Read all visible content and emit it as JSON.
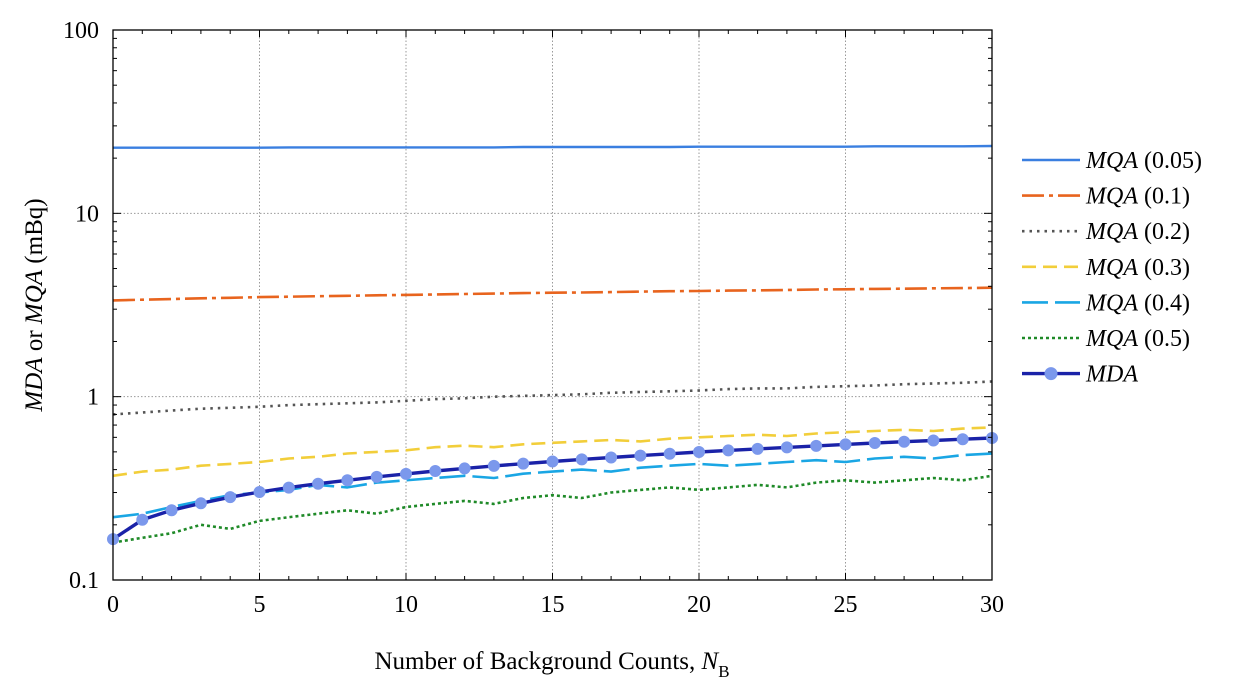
{
  "chart_data": {
    "type": "line",
    "title": "",
    "xlabel": {
      "main": "Number of Background Counts, ",
      "var": "N",
      "sub": "B"
    },
    "ylabel": {
      "p1": "MDA",
      "p2": " or ",
      "p3": "MQA",
      "p4": " (mBq)"
    },
    "xlim": [
      0,
      30
    ],
    "ylim": [
      0.1,
      100
    ],
    "yscale": "log",
    "grid": true,
    "legend_position": "right",
    "x_ticks": [
      0,
      5,
      10,
      15,
      20,
      25,
      30
    ],
    "x_tick_labels": [
      "0",
      "5",
      "10",
      "15",
      "20",
      "25",
      "30"
    ],
    "y_ticks": [
      0.1,
      1,
      10,
      100
    ],
    "y_tick_labels": [
      "0.1",
      "1",
      "10",
      "100"
    ],
    "x": [
      0,
      1,
      2,
      3,
      4,
      5,
      6,
      7,
      8,
      9,
      10,
      11,
      12,
      13,
      14,
      15,
      16,
      17,
      18,
      19,
      20,
      21,
      22,
      23,
      24,
      25,
      26,
      27,
      28,
      29,
      30
    ],
    "series": [
      {
        "name": "MQA",
        "param": "(0.05)",
        "color": "#3a7fe0",
        "dash": "solid",
        "values": [
          22.8,
          22.8,
          22.8,
          22.8,
          22.8,
          22.8,
          22.9,
          22.9,
          22.9,
          22.9,
          22.9,
          22.9,
          22.9,
          22.9,
          23.0,
          23.0,
          23.0,
          23.0,
          23.0,
          23.0,
          23.1,
          23.1,
          23.1,
          23.1,
          23.1,
          23.1,
          23.2,
          23.2,
          23.2,
          23.2,
          23.3
        ]
      },
      {
        "name": "MQA",
        "param": "(0.1)",
        "color": "#e8641e",
        "dash": "dashdot",
        "values": [
          3.35,
          3.38,
          3.41,
          3.44,
          3.46,
          3.49,
          3.51,
          3.53,
          3.55,
          3.57,
          3.59,
          3.61,
          3.63,
          3.65,
          3.67,
          3.69,
          3.7,
          3.72,
          3.74,
          3.76,
          3.77,
          3.79,
          3.8,
          3.82,
          3.84,
          3.85,
          3.87,
          3.88,
          3.9,
          3.91,
          3.93
        ]
      },
      {
        "name": "MQA",
        "param": "(0.2)",
        "color": "#555555",
        "dash": "dotted",
        "values": [
          0.8,
          0.82,
          0.84,
          0.86,
          0.87,
          0.88,
          0.9,
          0.91,
          0.92,
          0.93,
          0.95,
          0.97,
          0.98,
          1.0,
          1.01,
          1.02,
          1.03,
          1.05,
          1.06,
          1.07,
          1.08,
          1.1,
          1.11,
          1.11,
          1.13,
          1.14,
          1.15,
          1.17,
          1.18,
          1.19,
          1.21
        ]
      },
      {
        "name": "MQA",
        "param": "(0.3)",
        "color": "#f2ce3a",
        "dash": "dashed",
        "values": [
          0.37,
          0.39,
          0.4,
          0.42,
          0.43,
          0.44,
          0.46,
          0.47,
          0.49,
          0.5,
          0.51,
          0.53,
          0.54,
          0.53,
          0.55,
          0.56,
          0.57,
          0.58,
          0.57,
          0.59,
          0.6,
          0.61,
          0.62,
          0.61,
          0.63,
          0.64,
          0.65,
          0.66,
          0.65,
          0.67,
          0.68
        ]
      },
      {
        "name": "MQA",
        "param": "(0.4)",
        "color": "#1aa6e4",
        "dash": "longdash",
        "values": [
          0.22,
          0.23,
          0.25,
          0.27,
          0.29,
          0.3,
          0.31,
          0.33,
          0.32,
          0.34,
          0.35,
          0.36,
          0.37,
          0.36,
          0.38,
          0.39,
          0.4,
          0.39,
          0.41,
          0.42,
          0.43,
          0.42,
          0.43,
          0.44,
          0.45,
          0.44,
          0.46,
          0.47,
          0.46,
          0.48,
          0.49
        ]
      },
      {
        "name": "MQA",
        "param": "(0.5)",
        "color": "#1f8a28",
        "dash": "dotted2",
        "values": [
          0.16,
          0.17,
          0.18,
          0.2,
          0.19,
          0.21,
          0.22,
          0.23,
          0.24,
          0.23,
          0.25,
          0.26,
          0.27,
          0.26,
          0.28,
          0.29,
          0.28,
          0.3,
          0.31,
          0.32,
          0.31,
          0.32,
          0.33,
          0.32,
          0.34,
          0.35,
          0.34,
          0.35,
          0.36,
          0.35,
          0.37
        ]
      },
      {
        "name": "MDA",
        "param": "",
        "color": "#1a22a8",
        "marker_color": "#7b98ec",
        "dash": "solid-thick",
        "values": [
          0.167,
          0.213,
          0.24,
          0.262,
          0.283,
          0.302,
          0.319,
          0.335,
          0.35,
          0.365,
          0.379,
          0.393,
          0.406,
          0.419,
          0.431,
          0.443,
          0.455,
          0.466,
          0.477,
          0.488,
          0.499,
          0.509,
          0.519,
          0.529,
          0.539,
          0.549,
          0.559,
          0.568,
          0.577,
          0.586,
          0.595
        ]
      }
    ]
  }
}
